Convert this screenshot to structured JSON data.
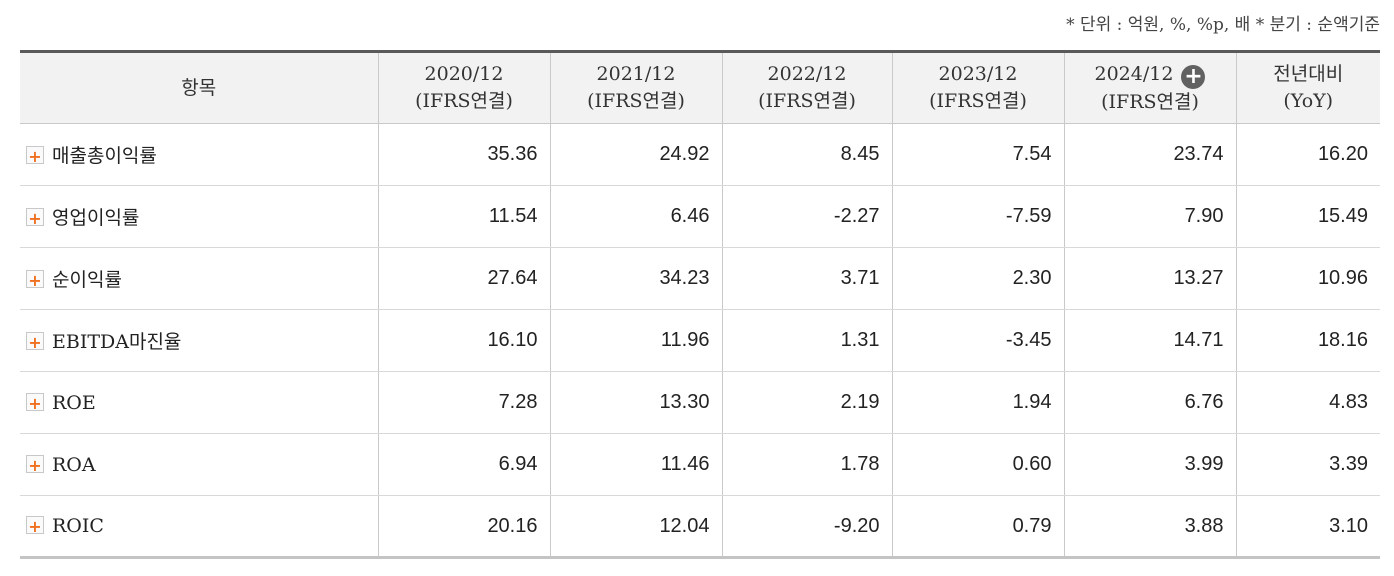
{
  "note": "* 단위 : 억원, %, %p, 배    * 분기 : 순액기준",
  "table": {
    "header_item": "항목",
    "periods": [
      {
        "year": "2020/12",
        "basis": "(IFRS연결)"
      },
      {
        "year": "2021/12",
        "basis": "(IFRS연결)"
      },
      {
        "year": "2022/12",
        "basis": "(IFRS연결)"
      },
      {
        "year": "2023/12",
        "basis": "(IFRS연결)"
      },
      {
        "year": "2024/12",
        "basis": "(IFRS연결)"
      }
    ],
    "yoy_line1": "전년대비",
    "yoy_line2": "(YoY)",
    "expand_icon": "plus-icon",
    "rows": [
      {
        "label": "매출총이익률",
        "values": [
          "35.36",
          "24.92",
          "8.45",
          "7.54",
          "23.74",
          "16.20"
        ]
      },
      {
        "label": "영업이익률",
        "values": [
          "11.54",
          "6.46",
          "-2.27",
          "-7.59",
          "7.90",
          "15.49"
        ]
      },
      {
        "label": "순이익률",
        "values": [
          "27.64",
          "34.23",
          "3.71",
          "2.30",
          "13.27",
          "10.96"
        ]
      },
      {
        "label": "EBITDA마진율",
        "values": [
          "16.10",
          "11.96",
          "1.31",
          "-3.45",
          "14.71",
          "18.16"
        ]
      },
      {
        "label": "ROE",
        "values": [
          "7.28",
          "13.30",
          "2.19",
          "1.94",
          "6.76",
          "4.83"
        ]
      },
      {
        "label": "ROA",
        "values": [
          "6.94",
          "11.46",
          "1.78",
          "0.60",
          "3.99",
          "3.39"
        ]
      },
      {
        "label": "ROIC",
        "values": [
          "20.16",
          "12.04",
          "-9.20",
          "0.79",
          "3.88",
          "3.10"
        ]
      }
    ]
  },
  "colors": {
    "negative": "#d0021b",
    "expand_plus": "#f07021",
    "header_bg": "#f2f2f2"
  }
}
